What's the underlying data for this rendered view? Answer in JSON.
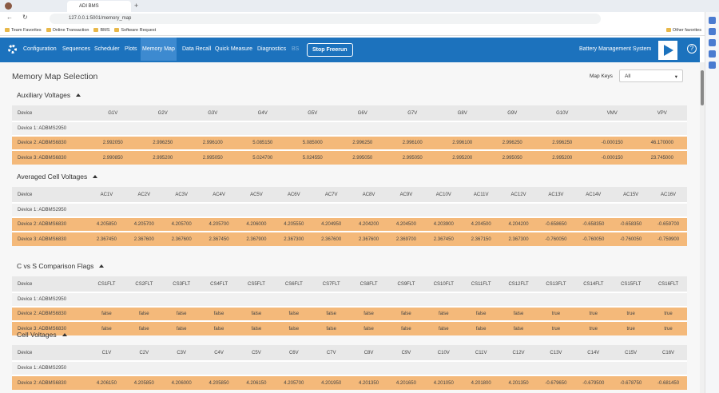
{
  "browser": {
    "tab_title": "ADI BMS",
    "url": "127.0.0.1:5001/memory_map",
    "bookmarks": [
      "Team Favorites",
      "Online Transaction",
      "BMS",
      "Software Request"
    ],
    "other_favorites": "Other favorites"
  },
  "nav": {
    "items": [
      "Configuration",
      "Sequences",
      "Scheduler",
      "Plots",
      "Memory Map",
      "Data Recall",
      "Quick Measure",
      "Diagnostics",
      "BS"
    ],
    "button": "Stop Freerun",
    "app_title": "Battery Management System"
  },
  "page": {
    "title": "Memory Map Selection",
    "map_keys_label": "Map Keys",
    "map_keys_value": "All"
  },
  "sections": [
    {
      "title": "Auxiliary Voltages",
      "columns": [
        "Device",
        "G1V",
        "G2V",
        "G3V",
        "G4V",
        "G5V",
        "G6V",
        "G7V",
        "G8V",
        "G9V",
        "G10V",
        "VMV",
        "VPV"
      ],
      "rows": [
        [
          "Device 1: ADBMS2950"
        ],
        [
          "Device 2: ADBMS6830",
          "2.992050",
          "2.996250",
          "2.996100",
          "5.085150",
          "5.085000",
          "2.996250",
          "2.996100",
          "2.996100",
          "2.996250",
          "2.996250",
          "-0.000150",
          "46.170000"
        ],
        [
          "Device 3: ADBMS6830",
          "2.990850",
          "2.995200",
          "2.995050",
          "5.024700",
          "5.024550",
          "2.995050",
          "2.995050",
          "2.995200",
          "2.995050",
          "2.995200",
          "-0.000150",
          "23.745000"
        ]
      ]
    },
    {
      "title": "Averaged Cell Voltages",
      "columns": [
        "Device",
        "AC1V",
        "AC2V",
        "AC3V",
        "AC4V",
        "AC5V",
        "AC6V",
        "AC7V",
        "AC8V",
        "AC9V",
        "AC10V",
        "AC11V",
        "AC12V",
        "AC13V",
        "AC14V",
        "AC15V",
        "AC16V"
      ],
      "rows": [
        [
          "Device 1: ADBMS2950"
        ],
        [
          "Device 2: ADBMS6830",
          "4.205850",
          "4.205700",
          "4.205700",
          "4.205700",
          "4.206000",
          "4.205550",
          "4.204950",
          "4.204200",
          "4.204500",
          "4.203900",
          "4.204500",
          "4.204200",
          "-0.658650",
          "-0.658350",
          "-0.658350",
          "-0.659700"
        ],
        [
          "Device 3: ADBMS6830",
          "2.367450",
          "2.367600",
          "2.367600",
          "2.367450",
          "2.367900",
          "2.367300",
          "2.367600",
          "2.367600",
          "2.369700",
          "2.367450",
          "2.367150",
          "2.367300",
          "-0.760050",
          "-0.760050",
          "-0.760050",
          "-0.759900"
        ]
      ]
    },
    {
      "title": "C vs S Comparison Flags",
      "columns": [
        "Device",
        "CS1FLT",
        "CS2FLT",
        "CS3FLT",
        "CS4FLT",
        "CS5FLT",
        "CS6FLT",
        "CS7FLT",
        "CS8FLT",
        "CS9FLT",
        "CS10FLT",
        "CS11FLT",
        "CS12FLT",
        "CS13FLT",
        "CS14FLT",
        "CS15FLT",
        "CS16FLT"
      ],
      "rows": [
        [
          "Device 1: ADBMS2950"
        ],
        [
          "Device 2: ADBMS6830",
          "false",
          "false",
          "false",
          "false",
          "false",
          "false",
          "false",
          "false",
          "false",
          "false",
          "false",
          "false",
          "true",
          "true",
          "true",
          "true"
        ],
        [
          "Device 3: ADBMS6830",
          "false",
          "false",
          "false",
          "false",
          "false",
          "false",
          "false",
          "false",
          "false",
          "false",
          "false",
          "false",
          "true",
          "true",
          "true",
          "true"
        ]
      ]
    },
    {
      "title": "Cell Voltages",
      "columns": [
        "Device",
        "C1V",
        "C2V",
        "C3V",
        "C4V",
        "C5V",
        "C6V",
        "C7V",
        "C8V",
        "C9V",
        "C10V",
        "C11V",
        "C12V",
        "C13V",
        "C14V",
        "C15V",
        "C16V"
      ],
      "rows": [
        [
          "Device 1: ADBMS2950"
        ],
        [
          "Device 2: ADBMS6830",
          "4.206150",
          "4.205850",
          "4.206000",
          "4.205850",
          "4.206150",
          "4.205700",
          "4.201950",
          "4.201350",
          "4.201650",
          "4.201050",
          "4.201800",
          "4.201350",
          "-0.679650",
          "-0.679500",
          "-0.678750",
          "-0.681450"
        ]
      ]
    }
  ]
}
